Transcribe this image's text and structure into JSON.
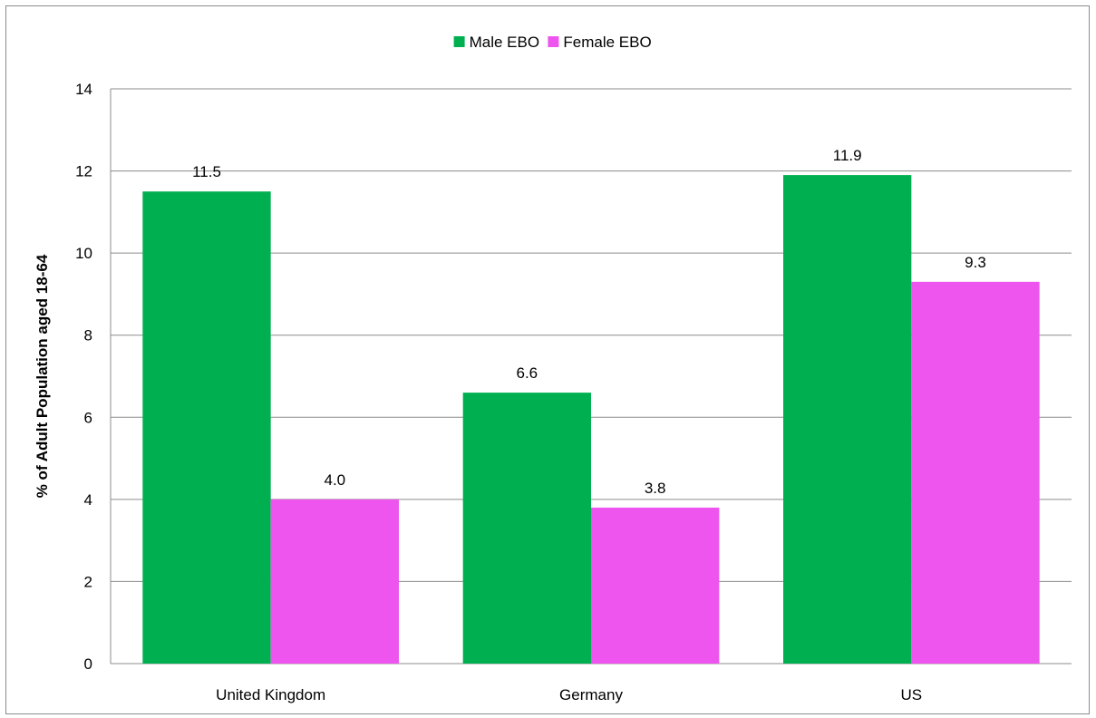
{
  "chart_data": {
    "type": "bar",
    "categories": [
      "United Kingdom",
      "Germany",
      "US"
    ],
    "series": [
      {
        "name": "Male EBO",
        "values": [
          11.5,
          6.6,
          11.9
        ],
        "labels": [
          "11.5",
          "6.6",
          "11.9"
        ],
        "color": "#00b050"
      },
      {
        "name": "Female EBO",
        "values": [
          4.0,
          3.8,
          9.3
        ],
        "labels": [
          "4.0",
          "3.8",
          "9.3"
        ],
        "color": "#ee55ee"
      }
    ],
    "ylabel": "% of Adult Population aged 18-64",
    "xlabel": "",
    "ylim": [
      0,
      14
    ],
    "yticks": [
      "0",
      "2",
      "4",
      "6",
      "8",
      "10",
      "12",
      "14"
    ],
    "grid": true,
    "legend_position": "top-center"
  }
}
